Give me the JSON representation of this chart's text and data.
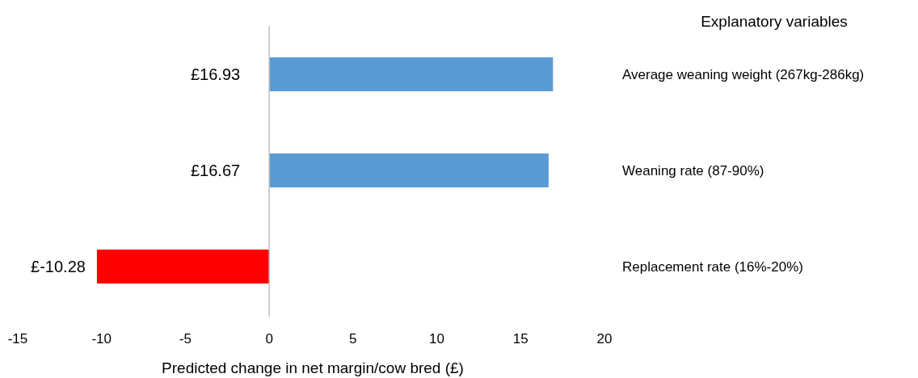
{
  "chart_data": {
    "type": "bar",
    "orientation": "horizontal",
    "xlabel": "Predicted change in net margin/cow bred (£)",
    "ylabel": "Explanatory variables",
    "categories": [
      "Average weaning weight (267kg-286kg)",
      "Weaning rate (87-90%)",
      "Replacement rate (16%-20%)"
    ],
    "values": [
      16.93,
      16.67,
      -10.28
    ],
    "colors": [
      "#5b9bd5",
      "#5b9bd5",
      "#ff0000"
    ],
    "value_labels": [
      "£16.93",
      "£16.67",
      "£-10.28"
    ],
    "xlim": [
      -15,
      20
    ],
    "xticks": [
      -15,
      -10,
      -5,
      0,
      5,
      10,
      15,
      20
    ]
  }
}
